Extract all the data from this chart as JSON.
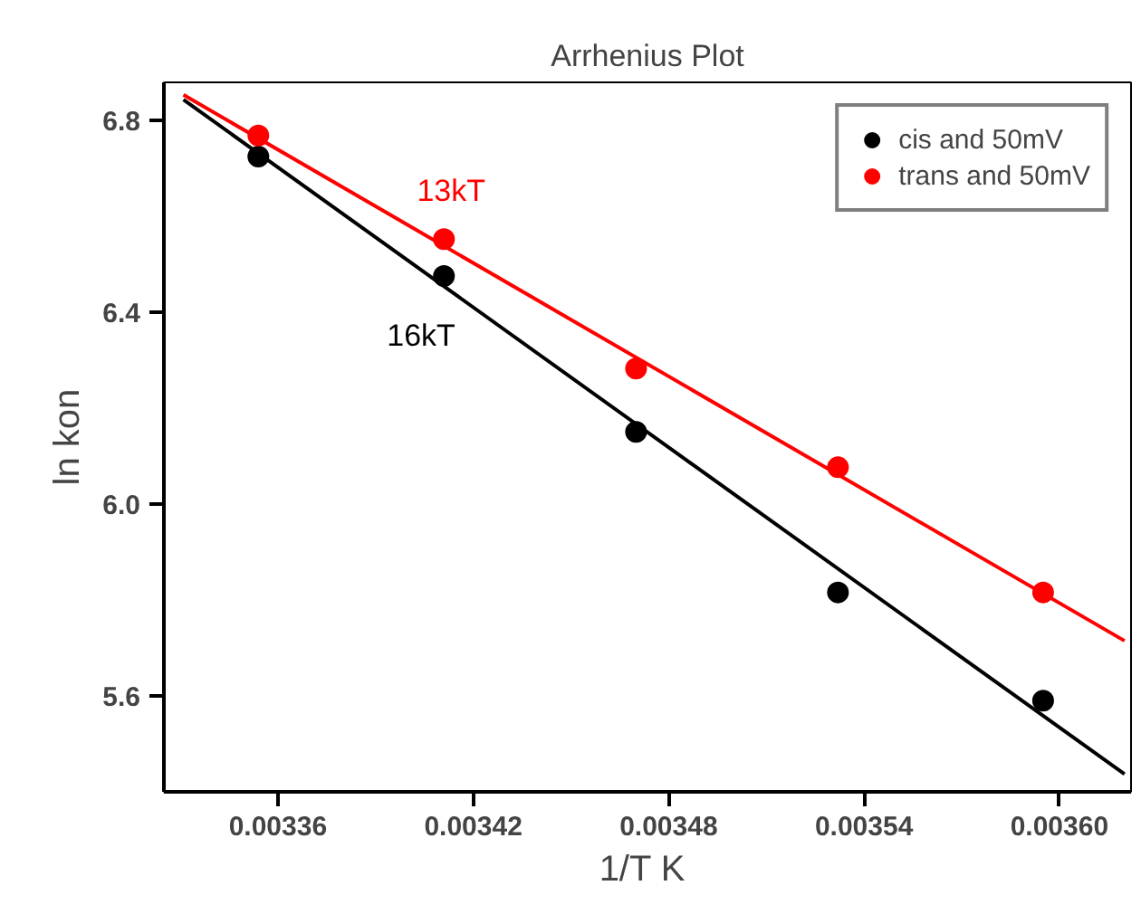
{
  "chart_data": {
    "type": "scatter",
    "title": "Arrhenius Plot",
    "xlabel": "1/T  K",
    "ylabel": "ln kon",
    "xlim": [
      0.003325,
      0.003622
    ],
    "ylim": [
      5.4,
      6.88
    ],
    "xticks": [
      0.00336,
      0.00342,
      0.00348,
      0.00354,
      {
        "value": 0.0036,
        "label": "0.00360"
      }
    ],
    "yticks": [
      {
        "value": 5.6,
        "label": "5.6"
      },
      {
        "value": 6.0,
        "label": "6.0"
      },
      {
        "value": 6.4,
        "label": "6.4"
      },
      {
        "value": 6.8,
        "label": "6.8"
      }
    ],
    "grid": false,
    "legend": "top right",
    "series": [
      {
        "name": "cis and 50mV",
        "color": "#000000",
        "marker": "circle",
        "x": [
          0.003354,
          0.003411,
          0.00347,
          0.003532,
          0.003595
        ],
        "values": [
          6.725,
          6.476,
          6.151,
          5.816,
          5.59
        ]
      },
      {
        "name": "trans and 50mV",
        "color": "#ff0000",
        "marker": "circle",
        "x": [
          0.003354,
          0.003411,
          0.00347,
          0.003532,
          0.003595
        ],
        "values": [
          6.769,
          6.553,
          6.283,
          6.077,
          5.816
        ]
      },
      {
        "type": "line",
        "color": "#ff0000",
        "x": [
          0.003331,
          0.00362
        ],
        "values": [
          6.854,
          5.715
        ]
      },
      {
        "type": "line",
        "color": "#000000",
        "x": [
          0.003331,
          0.00362
        ],
        "values": [
          6.844,
          5.437
        ]
      }
    ],
    "annotations": [
      "13kT",
      "16kT"
    ]
  }
}
